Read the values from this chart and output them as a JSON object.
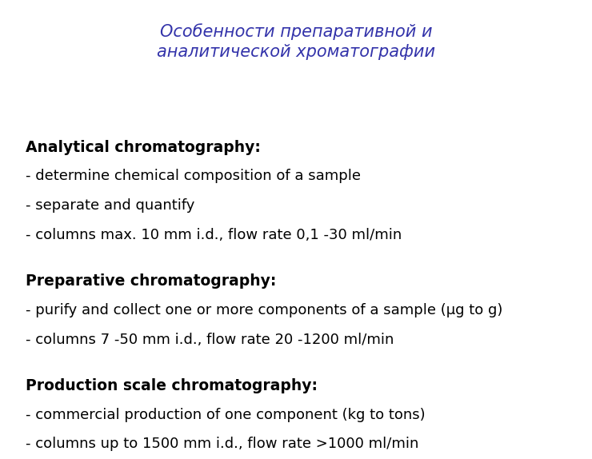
{
  "title_line1": "Особенности препаративной и",
  "title_line2": "аналитической хроматографии",
  "title_color": "#3333aa",
  "background_color": "#ffffff",
  "sections": [
    {
      "header": "Analytical chromatography:",
      "lines": [
        "- determine chemical composition of a sample",
        "- separate and quantify",
        "- columns max. 10 mm i.d., flow rate 0,1 -30 ml/min"
      ]
    },
    {
      "header": "Preparative chromatography:",
      "lines": [
        "- purify and collect one or more components of a sample (μg to g)",
        "- columns 7 -50 mm i.d., flow rate 20 -1200 ml/min"
      ]
    },
    {
      "header": "Production scale chromatography:",
      "lines": [
        "- commercial production of one component (kg to tons)",
        "- columns up to 1500 mm i.d., flow rate >1000 ml/min"
      ]
    }
  ],
  "header_fontsize": 13.5,
  "body_fontsize": 13,
  "title_fontsize": 15,
  "text_color": "#000000",
  "font_family": "DejaVu Sans"
}
